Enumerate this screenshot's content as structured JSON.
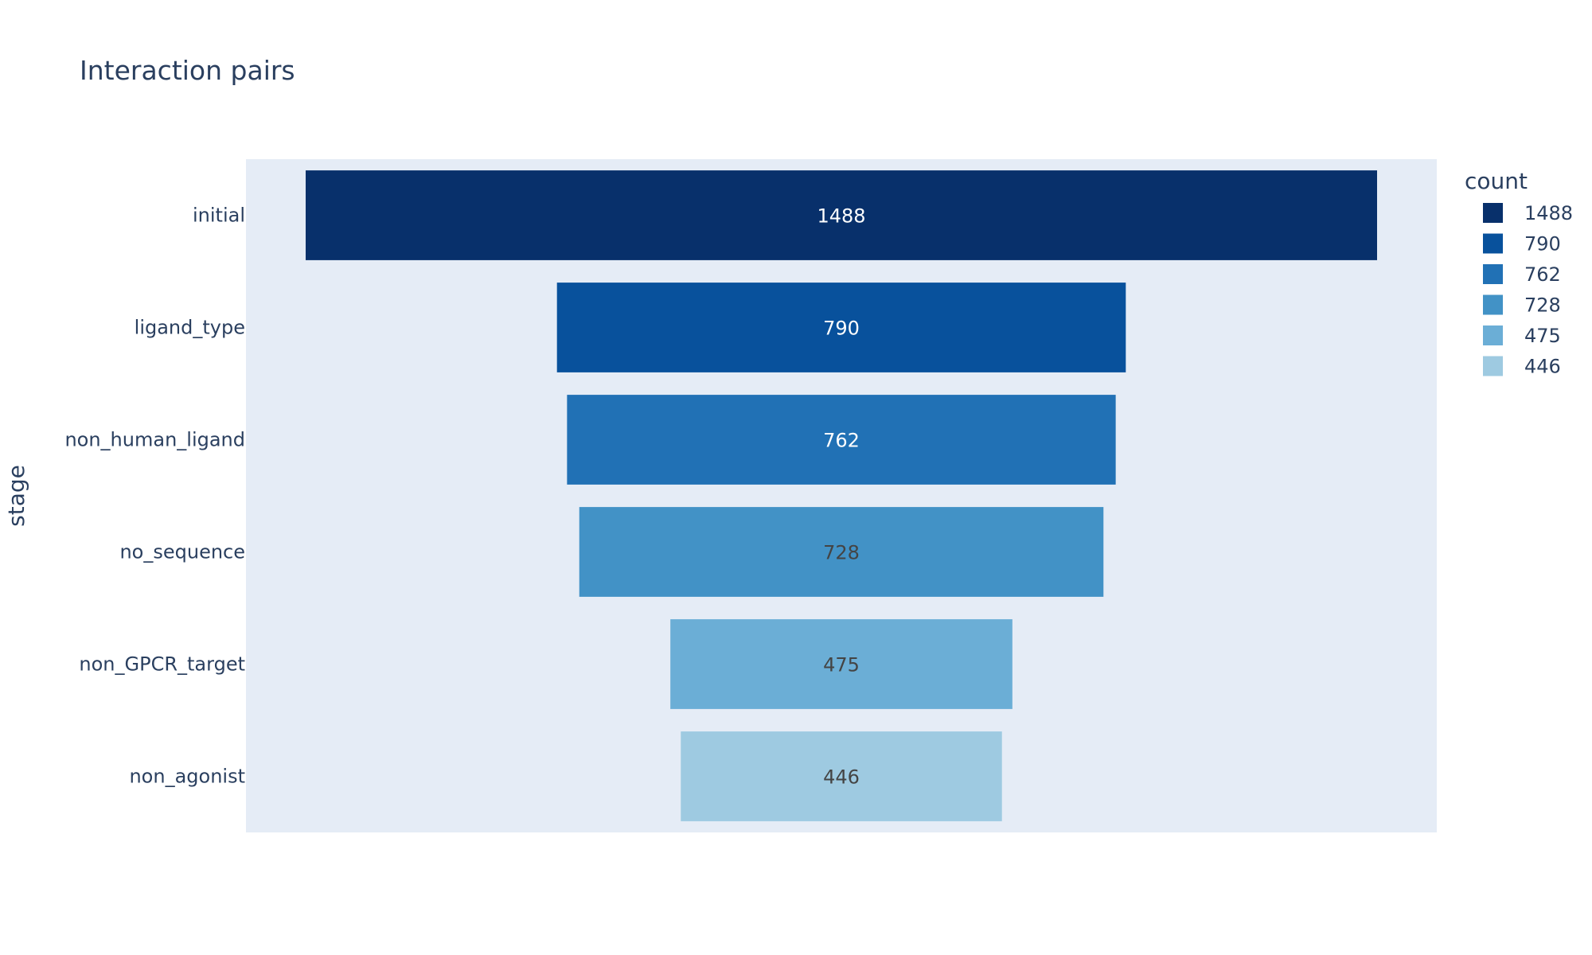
{
  "chart_data": {
    "type": "funnel",
    "title": "Interaction pairs",
    "ylabel": "stage",
    "categories": [
      "initial",
      "ligand_type",
      "non_human_ligand",
      "no_sequence",
      "non_GPCR_target",
      "non_agonist"
    ],
    "values": [
      1488,
      790,
      762,
      728,
      475,
      446
    ],
    "value_labels": [
      "1488",
      "790",
      "762",
      "728",
      "475",
      "446"
    ],
    "colors": [
      "#08306b",
      "#08519c",
      "#2171b5",
      "#4292c6",
      "#6baed6",
      "#9ecae1"
    ],
    "label_colors": [
      "#ffffff",
      "#ffffff",
      "#ffffff",
      "#444444",
      "#444444",
      "#444444"
    ],
    "legend": {
      "title": "count",
      "placement": "right",
      "entries": [
        "1488",
        "790",
        "762",
        "728",
        "475",
        "446"
      ]
    },
    "plot_background": "#e5ecf6",
    "grid": false
  }
}
